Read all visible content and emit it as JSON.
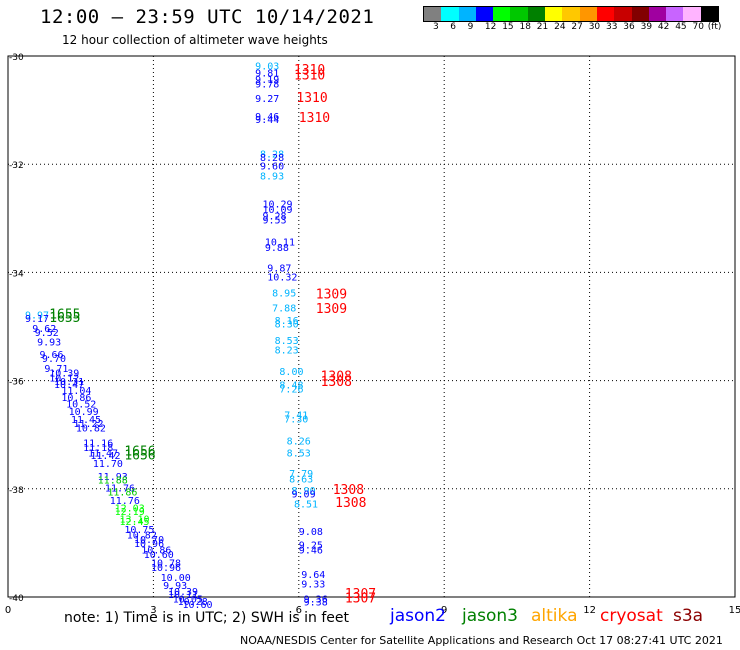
{
  "header": {
    "title": "12:00 – 23:59 UTC 10/14/2021",
    "subtitle": "12 hour collection of altimeter wave heights"
  },
  "colorbar": {
    "colors": [
      "#808080",
      "#00ffff",
      "#00b4ff",
      "#0000ff",
      "#00ff00",
      "#00c800",
      "#008000",
      "#ffff00",
      "#ffc800",
      "#ff9600",
      "#ff0000",
      "#c80000",
      "#820000",
      "#a000a0",
      "#c864ff",
      "#ffb4ff",
      "#000000"
    ],
    "labels": [
      "3",
      "6",
      "9",
      "12",
      "15",
      "18",
      "21",
      "24",
      "27",
      "30",
      "33",
      "36",
      "39",
      "42",
      "45",
      "70"
    ],
    "units": "(ft)"
  },
  "footer": {
    "note": "note:  1) Time is in UTC;  2) SWH is in feet",
    "credit": "NOAA/NESDIS Center for Satellite Applications and Research   Oct 17 08:27:41 UTC 2021"
  },
  "legend": [
    {
      "name": "jason2",
      "color": "#0000ff"
    },
    {
      "name": "jason3",
      "color": "#008000"
    },
    {
      "name": "altika",
      "color": "#ffa500"
    },
    {
      "name": "cryosat",
      "color": "#ff0000"
    },
    {
      "name": "s3a",
      "color": "#8b0000"
    }
  ],
  "chart_data": {
    "type": "scatter",
    "title": "12 hour collection of altimeter wave heights",
    "x_ticks": [
      "0",
      "3",
      "6",
      "9",
      "12",
      "15"
    ],
    "y_ticks": [
      "-30",
      "-32",
      "-34",
      "-36",
      "-38",
      "-40"
    ],
    "xlim": [
      0,
      15
    ],
    "ylim": [
      -40,
      -30
    ],
    "grid": true,
    "series": [
      {
        "name": "track-a",
        "points": [
          {
            "x": 5.1,
            "y": -30.25,
            "t": "9.03",
            "c": "#00b4ff"
          },
          {
            "x": 5.1,
            "y": -30.38,
            "t": "9.81",
            "c": "#0000ff"
          },
          {
            "x": 5.1,
            "y": -30.5,
            "t": "9.19",
            "c": "#0000ff"
          },
          {
            "x": 5.1,
            "y": -30.58,
            "t": "9.78",
            "c": "#0000ff"
          },
          {
            "x": 5.1,
            "y": -30.85,
            "t": "9.27",
            "c": "#0000ff"
          },
          {
            "x": 5.1,
            "y": -31.18,
            "t": "9.46",
            "c": "#0000ff"
          },
          {
            "x": 5.1,
            "y": -31.24,
            "t": "9.44",
            "c": "#0000ff"
          },
          {
            "x": 5.2,
            "y": -31.88,
            "t": "8.28",
            "c": "#00b4ff"
          },
          {
            "x": 5.2,
            "y": -31.94,
            "t": "8.28",
            "c": "#0000ff"
          },
          {
            "x": 5.2,
            "y": -32.1,
            "t": "9.60",
            "c": "#0000ff"
          },
          {
            "x": 5.2,
            "y": -32.28,
            "t": "8.93",
            "c": "#00b4ff"
          },
          {
            "x": 5.25,
            "y": -32.8,
            "t": "10.29",
            "c": "#0000ff"
          },
          {
            "x": 5.25,
            "y": -32.9,
            "t": "10.09",
            "c": "#0000ff"
          },
          {
            "x": 5.25,
            "y": -33.02,
            "t": "9.28",
            "c": "#0000ff"
          },
          {
            "x": 5.25,
            "y": -33.1,
            "t": "9.53",
            "c": "#0000ff"
          },
          {
            "x": 5.3,
            "y": -33.5,
            "t": "10.11",
            "c": "#0000ff"
          },
          {
            "x": 5.3,
            "y": -33.6,
            "t": "9.88",
            "c": "#0000ff"
          },
          {
            "x": 5.35,
            "y": -33.98,
            "t": "9.87",
            "c": "#0000ff"
          },
          {
            "x": 5.35,
            "y": -34.15,
            "t": "10.32",
            "c": "#0000ff"
          },
          {
            "x": 5.45,
            "y": -34.45,
            "t": "8.95",
            "c": "#00b4ff"
          },
          {
            "x": 5.45,
            "y": -34.72,
            "t": "7.88",
            "c": "#00b4ff"
          },
          {
            "x": 5.5,
            "y": -34.95,
            "t": "8.16",
            "c": "#00b4ff"
          },
          {
            "x": 5.5,
            "y": -35.02,
            "t": "8.30",
            "c": "#00b4ff"
          },
          {
            "x": 5.5,
            "y": -35.32,
            "t": "8.53",
            "c": "#00b4ff"
          },
          {
            "x": 5.5,
            "y": -35.5,
            "t": "8.23",
            "c": "#00b4ff"
          },
          {
            "x": 5.6,
            "y": -35.9,
            "t": "8.00",
            "c": "#00b4ff"
          },
          {
            "x": 5.6,
            "y": -36.15,
            "t": "8.48",
            "c": "#00b4ff"
          },
          {
            "x": 5.6,
            "y": -36.22,
            "t": "7.26",
            "c": "#00b4ff"
          },
          {
            "x": 5.7,
            "y": -36.7,
            "t": "7.41",
            "c": "#00b4ff"
          },
          {
            "x": 5.7,
            "y": -36.77,
            "t": "7.30",
            "c": "#00b4ff"
          },
          {
            "x": 5.75,
            "y": -37.18,
            "t": "8.26",
            "c": "#00b4ff"
          },
          {
            "x": 5.75,
            "y": -37.4,
            "t": "8.53",
            "c": "#00b4ff"
          },
          {
            "x": 5.8,
            "y": -37.78,
            "t": "7.79",
            "c": "#00b4ff"
          },
          {
            "x": 5.8,
            "y": -37.88,
            "t": "8.63",
            "c": "#00b4ff"
          },
          {
            "x": 5.85,
            "y": -38.1,
            "t": "8.90",
            "c": "#00b4ff"
          },
          {
            "x": 5.85,
            "y": -38.16,
            "t": "9.09",
            "c": "#0000ff"
          },
          {
            "x": 5.9,
            "y": -38.35,
            "t": "8.51",
            "c": "#00b4ff"
          },
          {
            "x": 6.0,
            "y": -38.85,
            "t": "9.08",
            "c": "#0000ff"
          },
          {
            "x": 6.0,
            "y": -39.1,
            "t": "9.25",
            "c": "#0000ff"
          },
          {
            "x": 6.0,
            "y": -39.2,
            "t": "9.46",
            "c": "#0000ff"
          },
          {
            "x": 6.05,
            "y": -39.65,
            "t": "9.64",
            "c": "#0000ff"
          },
          {
            "x": 6.05,
            "y": -39.82,
            "t": "9.33",
            "c": "#0000ff"
          },
          {
            "x": 6.1,
            "y": -40.1,
            "t": "9.36",
            "c": "#0000ff"
          },
          {
            "x": 6.1,
            "y": -40.16,
            "t": "9.38",
            "c": "#0000ff"
          }
        ]
      },
      {
        "name": "track-b",
        "points": [
          {
            "x": 0.35,
            "y": -34.85,
            "t": "9.97",
            "c": "#00b4ff"
          },
          {
            "x": 0.35,
            "y": -34.92,
            "t": "9.17",
            "c": "#0000ff"
          },
          {
            "x": 0.5,
            "y": -35.1,
            "t": "9.62",
            "c": "#0000ff"
          },
          {
            "x": 0.55,
            "y": -35.18,
            "t": "9.52",
            "c": "#0000ff"
          },
          {
            "x": 0.6,
            "y": -35.35,
            "t": "9.93",
            "c": "#0000ff"
          },
          {
            "x": 0.65,
            "y": -35.58,
            "t": "9.66",
            "c": "#0000ff"
          },
          {
            "x": 0.7,
            "y": -35.66,
            "t": "9.70",
            "c": "#0000ff"
          },
          {
            "x": 0.75,
            "y": -35.84,
            "t": "9.71",
            "c": "#0000ff"
          },
          {
            "x": 0.85,
            "y": -35.92,
            "t": "10.39",
            "c": "#0000ff"
          },
          {
            "x": 0.85,
            "y": -36.02,
            "t": "10.12",
            "c": "#0000ff"
          },
          {
            "x": 0.95,
            "y": -36.08,
            "t": "10.31",
            "c": "#0000ff"
          },
          {
            "x": 0.95,
            "y": -36.14,
            "t": "10.47",
            "c": "#0000ff"
          },
          {
            "x": 1.1,
            "y": -36.25,
            "t": "11.04",
            "c": "#0000ff"
          },
          {
            "x": 1.1,
            "y": -36.38,
            "t": "10.86",
            "c": "#0000ff"
          },
          {
            "x": 1.2,
            "y": -36.5,
            "t": "10.52",
            "c": "#0000ff"
          },
          {
            "x": 1.25,
            "y": -36.64,
            "t": "10.99",
            "c": "#0000ff"
          },
          {
            "x": 1.3,
            "y": -36.78,
            "t": "11.45",
            "c": "#0000ff"
          },
          {
            "x": 1.35,
            "y": -36.86,
            "t": "11.22",
            "c": "#0000ff"
          },
          {
            "x": 1.4,
            "y": -36.94,
            "t": "10.82",
            "c": "#0000ff"
          },
          {
            "x": 1.55,
            "y": -37.22,
            "t": "11.16",
            "c": "#0000ff"
          },
          {
            "x": 1.55,
            "y": -37.3,
            "t": "11.18",
            "c": "#0000ff"
          },
          {
            "x": 1.65,
            "y": -37.4,
            "t": "11.47",
            "c": "#0000ff"
          },
          {
            "x": 1.7,
            "y": -37.45,
            "t": "11.42",
            "c": "#0000ff"
          },
          {
            "x": 1.75,
            "y": -37.6,
            "t": "11.70",
            "c": "#0000ff"
          },
          {
            "x": 1.85,
            "y": -37.84,
            "t": "11.93",
            "c": "#0000ff"
          },
          {
            "x": 1.85,
            "y": -37.9,
            "t": "11.88",
            "c": "#00c800"
          },
          {
            "x": 2.0,
            "y": -38.05,
            "t": "11.76",
            "c": "#0000ff"
          },
          {
            "x": 2.05,
            "y": -38.12,
            "t": "11.86",
            "c": "#00c800"
          },
          {
            "x": 2.1,
            "y": -38.28,
            "t": "11.76",
            "c": "#0000ff"
          },
          {
            "x": 2.2,
            "y": -38.42,
            "t": "12.03",
            "c": "#00ff00"
          },
          {
            "x": 2.2,
            "y": -38.48,
            "t": "12.19",
            "c": "#00ff00"
          },
          {
            "x": 2.3,
            "y": -38.62,
            "t": "13.10",
            "c": "#00ff00"
          },
          {
            "x": 2.3,
            "y": -38.67,
            "t": "12.45",
            "c": "#00ff00"
          },
          {
            "x": 2.4,
            "y": -38.82,
            "t": "10.75",
            "c": "#0000ff"
          },
          {
            "x": 2.45,
            "y": -38.92,
            "t": "10.82",
            "c": "#0000ff"
          },
          {
            "x": 2.6,
            "y": -39.0,
            "t": "10.70",
            "c": "#0000ff"
          },
          {
            "x": 2.6,
            "y": -39.08,
            "t": "10.96",
            "c": "#0000ff"
          },
          {
            "x": 2.75,
            "y": -39.2,
            "t": "10.86",
            "c": "#0000ff"
          },
          {
            "x": 2.8,
            "y": -39.28,
            "t": "10.60",
            "c": "#0000ff"
          },
          {
            "x": 2.95,
            "y": -39.44,
            "t": "10.78",
            "c": "#0000ff"
          },
          {
            "x": 2.95,
            "y": -39.52,
            "t": "10.96",
            "c": "#0000ff"
          },
          {
            "x": 3.15,
            "y": -39.7,
            "t": "10.00",
            "c": "#0000ff"
          },
          {
            "x": 3.2,
            "y": -39.85,
            "t": "9.93",
            "c": "#0000ff"
          },
          {
            "x": 3.3,
            "y": -39.96,
            "t": "10.39",
            "c": "#0000ff"
          },
          {
            "x": 3.3,
            "y": -40.02,
            "t": "10.11",
            "c": "#0000ff"
          },
          {
            "x": 3.4,
            "y": -40.1,
            "t": "10.05",
            "c": "#0000ff"
          },
          {
            "x": 3.5,
            "y": -40.15,
            "t": "10.28",
            "c": "#0000ff"
          },
          {
            "x": 3.6,
            "y": -40.2,
            "t": "10.60",
            "c": "#0000ff"
          }
        ]
      }
    ],
    "time_labels": [
      {
        "x": 5.9,
        "y": -30.33,
        "t": "1310",
        "c": "#ff0000"
      },
      {
        "x": 5.9,
        "y": -30.43,
        "t": "1310",
        "c": "#ff0000"
      },
      {
        "x": 5.95,
        "y": -30.85,
        "t": "1310",
        "c": "#ff0000"
      },
      {
        "x": 6.0,
        "y": -31.22,
        "t": "1310",
        "c": "#ff0000"
      },
      {
        "x": 6.35,
        "y": -34.48,
        "t": "1309",
        "c": "#ff0000"
      },
      {
        "x": 6.35,
        "y": -34.75,
        "t": "1309",
        "c": "#ff0000"
      },
      {
        "x": 6.45,
        "y": -36.0,
        "t": "1308",
        "c": "#ff0000"
      },
      {
        "x": 6.45,
        "y": -36.1,
        "t": "1308",
        "c": "#ff0000"
      },
      {
        "x": 6.7,
        "y": -38.1,
        "t": "1308",
        "c": "#ff0000"
      },
      {
        "x": 6.75,
        "y": -38.34,
        "t": "1308",
        "c": "#ff0000"
      },
      {
        "x": 6.95,
        "y": -40.02,
        "t": "1307",
        "c": "#ff0000"
      },
      {
        "x": 6.95,
        "y": -40.1,
        "t": "1307",
        "c": "#ff0000"
      },
      {
        "x": 0.85,
        "y": -34.85,
        "t": "1655",
        "c": "#008000"
      },
      {
        "x": 0.85,
        "y": -34.92,
        "t": "1655",
        "c": "#008000"
      },
      {
        "x": 2.4,
        "y": -37.38,
        "t": "1656",
        "c": "#008000"
      },
      {
        "x": 2.4,
        "y": -37.46,
        "t": "1656",
        "c": "#008000"
      }
    ]
  }
}
